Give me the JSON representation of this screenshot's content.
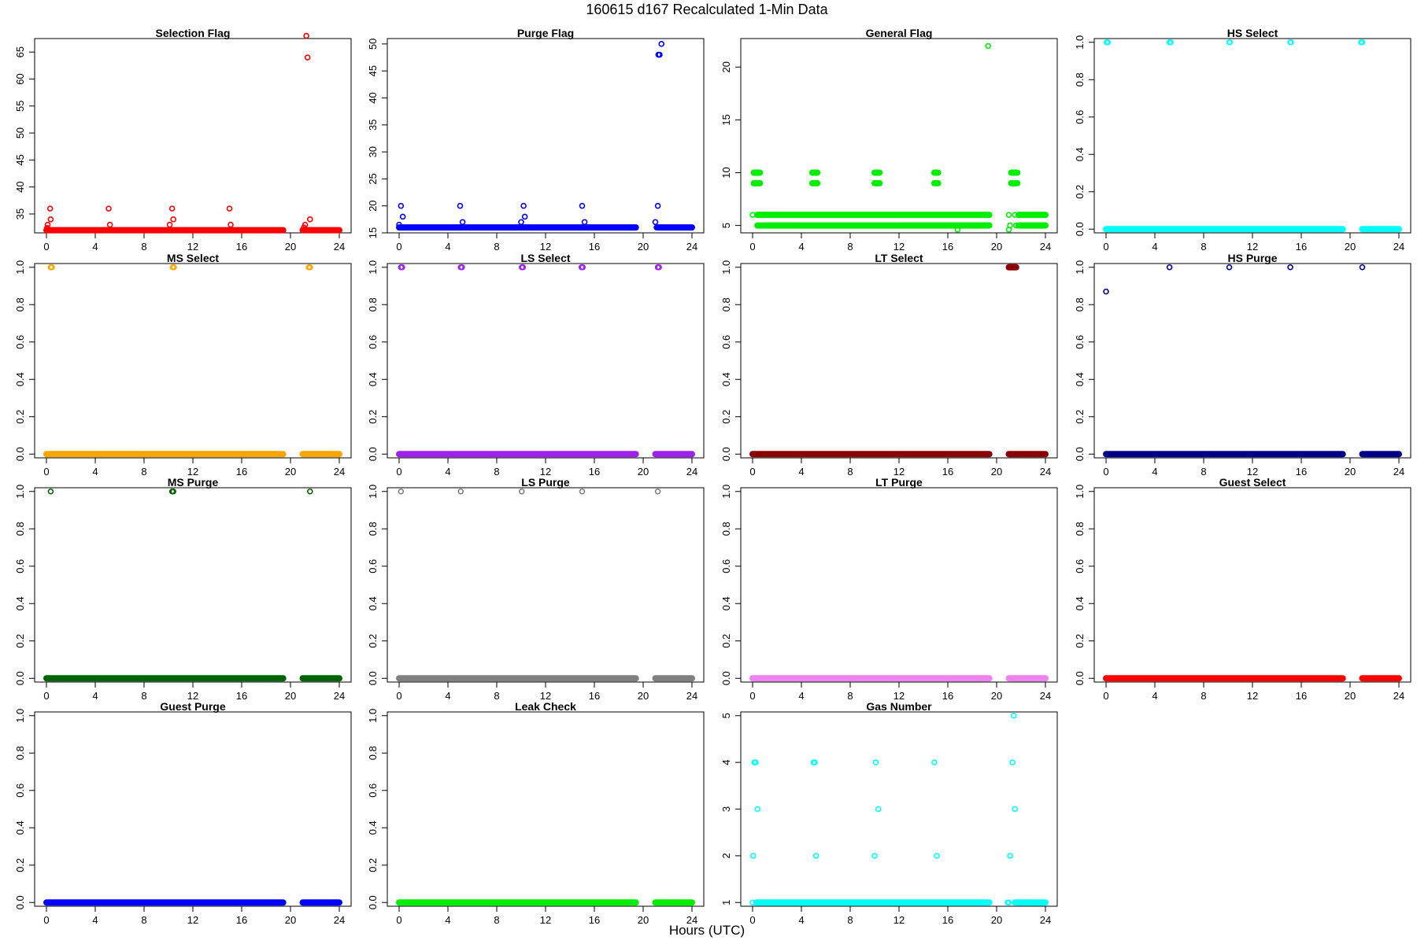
{
  "figure": {
    "title": "160615    d167    Recalculated 1-Min Data",
    "xlabel": "Hours (UTC)"
  },
  "chart_data": [
    {
      "type": "scatter",
      "title": "Selection Flag",
      "color": "#ff0000",
      "xlim": [
        0,
        24
      ],
      "ylim": [
        31.5,
        67.5
      ],
      "xticks": [
        0,
        4,
        8,
        12,
        16,
        20,
        24
      ],
      "yticks": [
        35,
        40,
        45,
        50,
        55,
        60,
        65
      ],
      "ytick_labels": [
        "35",
        "40",
        "45",
        "50",
        "55",
        "60",
        "65"
      ],
      "bands": [
        {
          "x0": 0,
          "x1": 19.4,
          "y": 32
        },
        {
          "x0": 21.0,
          "x1": 24,
          "y": 32
        }
      ],
      "points": [
        [
          0.05,
          32.4
        ],
        [
          0.1,
          33
        ],
        [
          0.3,
          36
        ],
        [
          0.35,
          34
        ],
        [
          5.1,
          36
        ],
        [
          5.2,
          33
        ],
        [
          10.1,
          33
        ],
        [
          10.3,
          36
        ],
        [
          10.4,
          34
        ],
        [
          15.0,
          36
        ],
        [
          15.1,
          33
        ],
        [
          21.1,
          32.5
        ],
        [
          21.2,
          33
        ],
        [
          21.3,
          68
        ],
        [
          21.4,
          64
        ],
        [
          21.6,
          34
        ]
      ]
    },
    {
      "type": "scatter",
      "title": "Purge Flag",
      "color": "#0000ff",
      "xlim": [
        0,
        24
      ],
      "ylim": [
        15.0,
        51.0
      ],
      "xticks": [
        0,
        4,
        8,
        12,
        16,
        20,
        24
      ],
      "yticks": [
        15,
        20,
        25,
        30,
        35,
        40,
        45,
        50
      ],
      "ytick_labels": [
        "15",
        "20",
        "25",
        "30",
        "35",
        "40",
        "45",
        "50"
      ],
      "bands": [
        {
          "x0": 0,
          "x1": 19.4,
          "y": 16
        },
        {
          "x0": 21.2,
          "x1": 24,
          "y": 16
        }
      ],
      "points": [
        [
          0.0,
          16.5
        ],
        [
          0.15,
          20
        ],
        [
          0.3,
          18
        ],
        [
          5.0,
          20
        ],
        [
          5.2,
          17
        ],
        [
          10.0,
          17
        ],
        [
          10.2,
          20
        ],
        [
          10.3,
          18
        ],
        [
          15.0,
          20
        ],
        [
          15.2,
          17
        ],
        [
          21.0,
          17
        ],
        [
          21.1,
          16
        ],
        [
          21.2,
          20
        ],
        [
          21.25,
          48
        ],
        [
          21.35,
          48
        ],
        [
          21.5,
          50
        ]
      ]
    },
    {
      "type": "scatter",
      "title": "General Flag",
      "color": "#00ee00",
      "xlim": [
        0,
        24
      ],
      "ylim": [
        4.3,
        22.7
      ],
      "xticks": [
        0,
        4,
        8,
        12,
        16,
        20,
        24
      ],
      "yticks": [
        5,
        10,
        15,
        20
      ],
      "ytick_labels": [
        "5",
        "10",
        "15",
        "20"
      ],
      "bands": [
        {
          "x0": 0.4,
          "x1": 19.4,
          "y": 6
        },
        {
          "x0": 0.4,
          "x1": 19.4,
          "y": 5
        },
        {
          "x0": 21.8,
          "x1": 24,
          "y": 6
        },
        {
          "x0": 21.8,
          "x1": 24,
          "y": 5
        },
        {
          "x0": 0.1,
          "x1": 0.6,
          "y": 10
        },
        {
          "x0": 0.1,
          "x1": 0.6,
          "y": 9
        },
        {
          "x0": 4.9,
          "x1": 5.3,
          "y": 10
        },
        {
          "x0": 4.9,
          "x1": 5.3,
          "y": 9
        },
        {
          "x0": 10.0,
          "x1": 10.4,
          "y": 10
        },
        {
          "x0": 10.0,
          "x1": 10.4,
          "y": 9
        },
        {
          "x0": 14.9,
          "x1": 15.2,
          "y": 10
        },
        {
          "x0": 14.9,
          "x1": 15.2,
          "y": 9
        },
        {
          "x0": 21.2,
          "x1": 21.7,
          "y": 10
        },
        {
          "x0": 21.2,
          "x1": 21.7,
          "y": 9
        }
      ],
      "points": [
        [
          0.0,
          6
        ],
        [
          16.8,
          4.6
        ],
        [
          19.3,
          22
        ],
        [
          21.0,
          4.6
        ],
        [
          21.0,
          6
        ],
        [
          21.1,
          5
        ],
        [
          21.5,
          6
        ],
        [
          21.6,
          5
        ]
      ]
    },
    {
      "type": "scatter",
      "title": "HS Select",
      "color": "#00ffff",
      "xlim": [
        0,
        24
      ],
      "ylim": [
        -0.02,
        1.02
      ],
      "xticks": [
        0,
        4,
        8,
        12,
        16,
        20,
        24
      ],
      "yticks": [
        0,
        0.2,
        0.4,
        0.6,
        0.8,
        1.0
      ],
      "ytick_labels": [
        "0.0",
        "0.2",
        "0.4",
        "0.6",
        "0.8",
        "1.0"
      ],
      "bands": [
        {
          "x0": 0,
          "x1": 19.4,
          "y": 0
        },
        {
          "x0": 21.0,
          "x1": 24,
          "y": 0
        }
      ],
      "points": [
        [
          0.05,
          1
        ],
        [
          0.15,
          1
        ],
        [
          5.2,
          1
        ],
        [
          5.3,
          1
        ],
        [
          10.1,
          1
        ],
        [
          10.15,
          1
        ],
        [
          15.1,
          1
        ],
        [
          15.15,
          1
        ],
        [
          20.9,
          1
        ],
        [
          21.0,
          1
        ]
      ]
    },
    {
      "type": "scatter",
      "title": "MS Select",
      "color": "#ffa500",
      "xlim": [
        0,
        24
      ],
      "ylim": [
        -0.02,
        1.02
      ],
      "xticks": [
        0,
        4,
        8,
        12,
        16,
        20,
        24
      ],
      "yticks": [
        0,
        0.2,
        0.4,
        0.6,
        0.8,
        1.0
      ],
      "ytick_labels": [
        "0.0",
        "0.2",
        "0.4",
        "0.6",
        "0.8",
        "1.0"
      ],
      "bands": [
        {
          "x0": 0,
          "x1": 19.4,
          "y": 0
        },
        {
          "x0": 21.0,
          "x1": 24,
          "y": 0
        }
      ],
      "points": [
        [
          0.35,
          1
        ],
        [
          0.45,
          1
        ],
        [
          10.35,
          1
        ],
        [
          10.45,
          1
        ],
        [
          21.5,
          1
        ],
        [
          21.6,
          1
        ]
      ]
    },
    {
      "type": "scatter",
      "title": "LS Select",
      "color": "#a020f0",
      "xlim": [
        0,
        24
      ],
      "ylim": [
        -0.02,
        1.02
      ],
      "xticks": [
        0,
        4,
        8,
        12,
        16,
        20,
        24
      ],
      "yticks": [
        0,
        0.2,
        0.4,
        0.6,
        0.8,
        1.0
      ],
      "ytick_labels": [
        "0.0",
        "0.2",
        "0.4",
        "0.6",
        "0.8",
        "1.0"
      ],
      "bands": [
        {
          "x0": 0,
          "x1": 19.4,
          "y": 0
        },
        {
          "x0": 21.0,
          "x1": 24,
          "y": 0
        }
      ],
      "points": [
        [
          0.15,
          1
        ],
        [
          0.25,
          1
        ],
        [
          5.05,
          1
        ],
        [
          5.15,
          1
        ],
        [
          10.05,
          1
        ],
        [
          10.15,
          1
        ],
        [
          14.95,
          1
        ],
        [
          15.05,
          1
        ],
        [
          21.2,
          1
        ],
        [
          21.3,
          1
        ]
      ]
    },
    {
      "type": "scatter",
      "title": "LT Select",
      "color": "#8b0000",
      "xlim": [
        0,
        24
      ],
      "ylim": [
        -0.02,
        1.02
      ],
      "xticks": [
        0,
        4,
        8,
        12,
        16,
        20,
        24
      ],
      "yticks": [
        0,
        0.2,
        0.4,
        0.6,
        0.8,
        1.0
      ],
      "ytick_labels": [
        "0.0",
        "0.2",
        "0.4",
        "0.6",
        "0.8",
        "1.0"
      ],
      "bands": [
        {
          "x0": 0,
          "x1": 19.4,
          "y": 0
        },
        {
          "x0": 21.0,
          "x1": 24,
          "y": 0
        },
        {
          "x0": 21.0,
          "x1": 21.6,
          "y": 1
        }
      ],
      "points": []
    },
    {
      "type": "scatter",
      "title": "HS Purge",
      "color": "#00008b",
      "xlim": [
        0,
        24
      ],
      "ylim": [
        -0.02,
        1.02
      ],
      "xticks": [
        0,
        4,
        8,
        12,
        16,
        20,
        24
      ],
      "yticks": [
        0,
        0.2,
        0.4,
        0.6,
        0.8,
        1.0
      ],
      "ytick_labels": [
        "0.0",
        "0.2",
        "0.4",
        "0.6",
        "0.8",
        "1.0"
      ],
      "bands": [
        {
          "x0": 0,
          "x1": 19.4,
          "y": 0
        },
        {
          "x0": 21.0,
          "x1": 24,
          "y": 0
        }
      ],
      "points": [
        [
          0.0,
          0.87
        ],
        [
          5.2,
          1
        ],
        [
          10.1,
          1
        ],
        [
          15.1,
          1
        ],
        [
          21.0,
          1
        ]
      ]
    },
    {
      "type": "scatter",
      "title": "MS Purge",
      "color": "#006400",
      "xlim": [
        0,
        24
      ],
      "ylim": [
        -0.02,
        1.02
      ],
      "xticks": [
        0,
        4,
        8,
        12,
        16,
        20,
        24
      ],
      "yticks": [
        0,
        0.2,
        0.4,
        0.6,
        0.8,
        1.0
      ],
      "ytick_labels": [
        "0.0",
        "0.2",
        "0.4",
        "0.6",
        "0.8",
        "1.0"
      ],
      "bands": [
        {
          "x0": 0,
          "x1": 19.4,
          "y": 0
        },
        {
          "x0": 21.0,
          "x1": 24,
          "y": 0
        }
      ],
      "points": [
        [
          0.35,
          1
        ],
        [
          10.3,
          1
        ],
        [
          10.4,
          1
        ],
        [
          21.6,
          1
        ]
      ]
    },
    {
      "type": "scatter",
      "title": "LS Purge",
      "color": "#808080",
      "xlim": [
        0,
        24
      ],
      "ylim": [
        -0.02,
        1.02
      ],
      "xticks": [
        0,
        4,
        8,
        12,
        16,
        20,
        24
      ],
      "yticks": [
        0,
        0.2,
        0.4,
        0.6,
        0.8,
        1.0
      ],
      "ytick_labels": [
        "0.0",
        "0.2",
        "0.4",
        "0.6",
        "0.8",
        "1.0"
      ],
      "bands": [
        {
          "x0": 0,
          "x1": 19.4,
          "y": 0
        },
        {
          "x0": 21.0,
          "x1": 24,
          "y": 0
        }
      ],
      "points": [
        [
          0.15,
          1
        ],
        [
          5.05,
          1
        ],
        [
          10.05,
          1
        ],
        [
          15.0,
          1
        ],
        [
          21.2,
          1
        ]
      ]
    },
    {
      "type": "scatter",
      "title": "LT Purge",
      "color": "#ee82ee",
      "xlim": [
        0,
        24
      ],
      "ylim": [
        -0.02,
        1.02
      ],
      "xticks": [
        0,
        4,
        8,
        12,
        16,
        20,
        24
      ],
      "yticks": [
        0,
        0.2,
        0.4,
        0.6,
        0.8,
        1.0
      ],
      "ytick_labels": [
        "0.0",
        "0.2",
        "0.4",
        "0.6",
        "0.8",
        "1.0"
      ],
      "bands": [
        {
          "x0": 0,
          "x1": 19.4,
          "y": 0
        },
        {
          "x0": 21.0,
          "x1": 24,
          "y": 0
        }
      ],
      "points": []
    },
    {
      "type": "scatter",
      "title": "Guest Select",
      "color": "#ff0000",
      "xlim": [
        0,
        24
      ],
      "ylim": [
        -0.02,
        1.02
      ],
      "xticks": [
        0,
        4,
        8,
        12,
        16,
        20,
        24
      ],
      "yticks": [
        0,
        0.2,
        0.4,
        0.6,
        0.8,
        1.0
      ],
      "ytick_labels": [
        "0.0",
        "0.2",
        "0.4",
        "0.6",
        "0.8",
        "1.0"
      ],
      "bands": [
        {
          "x0": 0,
          "x1": 19.4,
          "y": 0
        },
        {
          "x0": 21.0,
          "x1": 24,
          "y": 0
        }
      ],
      "points": []
    },
    {
      "type": "scatter",
      "title": "Guest Purge",
      "color": "#0000ff",
      "xlim": [
        0,
        24
      ],
      "ylim": [
        -0.02,
        1.02
      ],
      "xticks": [
        0,
        4,
        8,
        12,
        16,
        20,
        24
      ],
      "yticks": [
        0,
        0.2,
        0.4,
        0.6,
        0.8,
        1.0
      ],
      "ytick_labels": [
        "0.0",
        "0.2",
        "0.4",
        "0.6",
        "0.8",
        "1.0"
      ],
      "bands": [
        {
          "x0": 0,
          "x1": 19.4,
          "y": 0
        },
        {
          "x0": 21.0,
          "x1": 24,
          "y": 0
        }
      ],
      "points": []
    },
    {
      "type": "scatter",
      "title": "Leak Check",
      "color": "#00ee00",
      "xlim": [
        0,
        24
      ],
      "ylim": [
        -0.02,
        1.02
      ],
      "xticks": [
        0,
        4,
        8,
        12,
        16,
        20,
        24
      ],
      "yticks": [
        0,
        0.2,
        0.4,
        0.6,
        0.8,
        1.0
      ],
      "ytick_labels": [
        "0.0",
        "0.2",
        "0.4",
        "0.6",
        "0.8",
        "1.0"
      ],
      "bands": [
        {
          "x0": 0,
          "x1": 19.4,
          "y": 0
        },
        {
          "x0": 21.0,
          "x1": 24,
          "y": 0
        }
      ],
      "points": []
    },
    {
      "type": "scatter",
      "title": "Gas Number",
      "color": "#00ffff",
      "xlim": [
        0,
        24
      ],
      "ylim": [
        0.92,
        5.08
      ],
      "xticks": [
        0,
        4,
        8,
        12,
        16,
        20,
        24
      ],
      "yticks": [
        1,
        2,
        3,
        4,
        5
      ],
      "ytick_labels": [
        "1",
        "2",
        "3",
        "4",
        "5"
      ],
      "bands": [
        {
          "x0": 0.3,
          "x1": 19.4,
          "y": 1
        },
        {
          "x0": 21.5,
          "x1": 24,
          "y": 1
        }
      ],
      "points": [
        [
          0.0,
          1
        ],
        [
          0.05,
          2
        ],
        [
          0.15,
          4
        ],
        [
          0.25,
          4
        ],
        [
          0.4,
          3
        ],
        [
          5.0,
          4
        ],
        [
          5.1,
          4
        ],
        [
          5.2,
          2
        ],
        [
          10.0,
          2
        ],
        [
          10.1,
          4
        ],
        [
          10.3,
          3
        ],
        [
          14.9,
          4
        ],
        [
          15.1,
          2
        ],
        [
          20.9,
          1
        ],
        [
          21.0,
          1
        ],
        [
          21.1,
          2
        ],
        [
          21.3,
          4
        ],
        [
          21.4,
          5
        ],
        [
          21.5,
          3
        ]
      ]
    }
  ]
}
